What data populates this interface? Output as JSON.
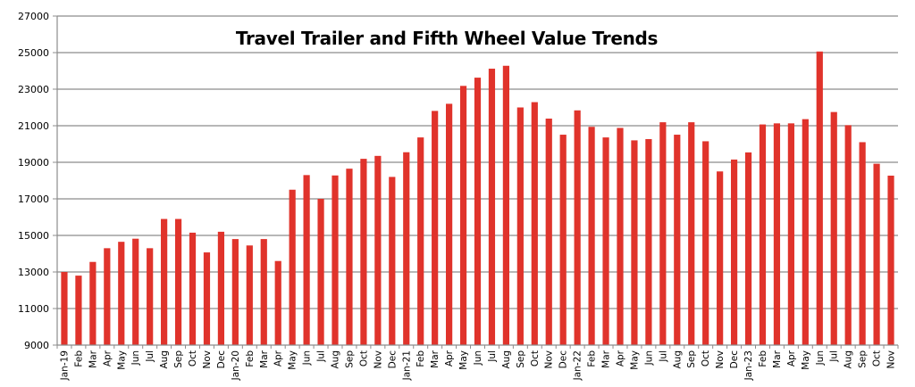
{
  "chart_data": {
    "type": "bar",
    "title": "Travel Trailer and Fifth Wheel Value Trends",
    "xlabel": "",
    "ylabel": "",
    "ylim": [
      9000,
      27000
    ],
    "yticks": [
      9000,
      11000,
      13000,
      15000,
      17000,
      19000,
      21000,
      23000,
      25000,
      27000
    ],
    "grid": true,
    "legend": null,
    "bar_color": "#e0332b",
    "categories": [
      "Jan-19",
      "Feb",
      "Mar",
      "Apr",
      "May",
      "Jun",
      "Jul",
      "Aug",
      "Sep",
      "Oct",
      "Nov",
      "Dec",
      "Jan-20",
      "Feb",
      "Mar",
      "Apr",
      "May",
      "Jun",
      "Jul",
      "Aug",
      "Sep",
      "Oct",
      "Nov",
      "Dec",
      "Jan-21",
      "Feb",
      "Mar",
      "Apr",
      "May",
      "Jun",
      "Jul",
      "Aug",
      "Sep",
      "Oct",
      "Nov",
      "Dec",
      "Jan-22",
      "Feb",
      "Mar",
      "Apr",
      "May",
      "Jun",
      "Jul",
      "Aug",
      "Sep",
      "Oct",
      "Nov",
      "Dec",
      "Jan-23",
      "Feb",
      "Mar",
      "Apr",
      "May",
      "Jun",
      "Jul",
      "Aug",
      "Sep",
      "Oct",
      "Nov"
    ],
    "values": [
      13000,
      12800,
      13550,
      14300,
      14650,
      14820,
      14300,
      15900,
      15900,
      15150,
      14070,
      15200,
      14800,
      14450,
      14800,
      13600,
      17500,
      18300,
      17000,
      18280,
      18650,
      19190,
      19350,
      18200,
      19550,
      20360,
      21810,
      22200,
      23180,
      23630,
      24120,
      24280,
      22000,
      22290,
      21390,
      20510,
      21840,
      20940,
      20360,
      20880,
      20200,
      20270,
      21190,
      20510,
      21190,
      20150,
      18500,
      19150,
      19540,
      21070,
      21130,
      21130,
      21360,
      25060,
      21750,
      21030,
      20100,
      18920,
      18270
    ]
  }
}
